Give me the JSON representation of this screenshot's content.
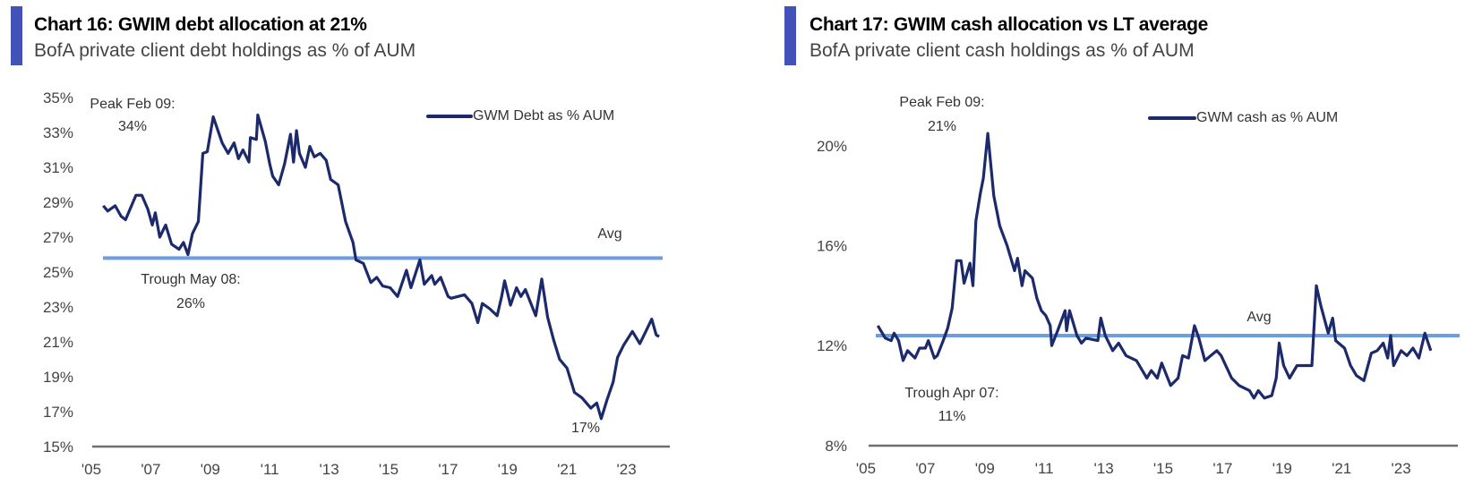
{
  "colors": {
    "series": "#1c2a6b",
    "avg": "#6b9ee0",
    "accent_bar": "#4352b8",
    "axis": "#6e6e6e"
  },
  "chart_data": [
    {
      "type": "line",
      "title": "Chart 16: GWIM debt allocation at 21%",
      "subtitle": "BofA private client debt holdings as % of AUM",
      "legend": {
        "label": "GWM Debt as % AUM",
        "position": "top-right"
      },
      "ylim": [
        15,
        35
      ],
      "yticks": [
        "15%",
        "17%",
        "19%",
        "21%",
        "23%",
        "25%",
        "27%",
        "29%",
        "31%",
        "33%",
        "35%"
      ],
      "ytick_values": [
        15,
        17,
        19,
        21,
        23,
        25,
        27,
        29,
        31,
        33,
        35
      ],
      "xticks": [
        "'05",
        "'07",
        "'09",
        "'11",
        "'13",
        "'15",
        "'17",
        "'19",
        "'21",
        "'23"
      ],
      "xtick_values": [
        2005,
        2007,
        2009,
        2011,
        2013,
        2015,
        2017,
        2019,
        2021,
        2023
      ],
      "avg": {
        "label": "Avg",
        "value": 25.8
      },
      "annotations": {
        "peak_label": "Peak Feb 09:",
        "peak_value": "34%",
        "trough_label": "Trough May 08:",
        "trough_value": "26%",
        "low_value": "17%"
      },
      "series": [
        {
          "name": "GWM Debt as % AUM",
          "x": [
            2005.4,
            2005.55,
            2005.8,
            2006.0,
            2006.15,
            2006.3,
            2006.5,
            2006.7,
            2006.9,
            2007.05,
            2007.15,
            2007.3,
            2007.5,
            2007.7,
            2007.95,
            2008.1,
            2008.25,
            2008.4,
            2008.6,
            2008.75,
            2008.9,
            2009.1,
            2009.4,
            2009.6,
            2009.8,
            2009.95,
            2010.1,
            2010.3,
            2010.35,
            2010.55,
            2010.6,
            2010.85,
            2011.0,
            2011.1,
            2011.3,
            2011.5,
            2011.7,
            2011.8,
            2011.9,
            2012.0,
            2012.2,
            2012.35,
            2012.5,
            2012.7,
            2012.9,
            2013.05,
            2013.3,
            2013.55,
            2013.8,
            2013.9,
            2014.15,
            2014.4,
            2014.6,
            2014.8,
            2015.05,
            2015.3,
            2015.6,
            2015.75,
            2016.05,
            2016.2,
            2016.45,
            2016.55,
            2016.75,
            2017.0,
            2017.1,
            2017.55,
            2017.8,
            2018.0,
            2018.15,
            2018.4,
            2018.65,
            2018.8,
            2018.9,
            2019.1,
            2019.3,
            2019.45,
            2019.6,
            2019.95,
            2020.15,
            2020.35,
            2020.55,
            2020.75,
            2021.0,
            2021.25,
            2021.5,
            2021.8,
            2022.0,
            2022.15,
            2022.35,
            2022.55,
            2022.7,
            2022.9,
            2023.2,
            2023.45,
            2023.65,
            2023.85,
            2024.0,
            2024.1
          ],
          "y": [
            28.8,
            28.5,
            28.8,
            28.2,
            28.0,
            28.6,
            29.4,
            29.4,
            28.6,
            27.7,
            28.4,
            27.0,
            27.7,
            26.6,
            26.3,
            26.7,
            26.0,
            27.2,
            27.9,
            31.8,
            31.9,
            33.9,
            32.4,
            31.8,
            32.4,
            31.5,
            32.0,
            31.3,
            32.7,
            32.6,
            34.0,
            32.5,
            31.2,
            30.5,
            30.0,
            31.2,
            32.9,
            31.3,
            33.1,
            31.8,
            31.0,
            32.2,
            31.6,
            31.8,
            31.4,
            30.3,
            30.0,
            27.9,
            26.7,
            25.7,
            25.5,
            24.4,
            24.7,
            24.2,
            24.1,
            23.6,
            25.1,
            24.1,
            25.7,
            24.3,
            24.8,
            24.3,
            24.7,
            23.6,
            23.5,
            23.7,
            23.2,
            22.1,
            23.2,
            22.9,
            22.5,
            23.6,
            24.5,
            23.1,
            24.1,
            23.6,
            24.0,
            22.5,
            24.6,
            22.4,
            21.1,
            20.0,
            19.5,
            18.1,
            17.8,
            17.2,
            17.5,
            16.6,
            17.7,
            18.7,
            20.1,
            20.8,
            21.6,
            20.9,
            21.6,
            22.3,
            21.4,
            21.3
          ]
        }
      ]
    },
    {
      "type": "line",
      "title": "Chart 17: GWIM cash allocation vs LT average",
      "subtitle": "BofA private client cash holdings as % of AUM",
      "legend": {
        "label": "GWM cash as % AUM",
        "position": "top-right"
      },
      "ylim": [
        8,
        21
      ],
      "yticks": [
        "8%",
        "12%",
        "16%",
        "20%"
      ],
      "ytick_values": [
        8,
        12,
        16,
        20
      ],
      "xticks": [
        "'05",
        "'07",
        "'09",
        "'11",
        "'13",
        "'15",
        "'17",
        "'19",
        "'21",
        "'23"
      ],
      "xtick_values": [
        2005,
        2007,
        2009,
        2011,
        2013,
        2015,
        2017,
        2019,
        2021,
        2023
      ],
      "avg": {
        "label": "Avg",
        "value": 12.4
      },
      "annotations": {
        "peak_label": "Peak Feb 09:",
        "peak_value": "21%",
        "trough_label": "Trough Apr 07:",
        "trough_value": "11%"
      },
      "series": [
        {
          "name": "GWM cash as % AUM",
          "x": [
            2005.4,
            2005.65,
            2005.85,
            2005.95,
            2006.1,
            2006.25,
            2006.4,
            2006.65,
            2006.8,
            2007.0,
            2007.1,
            2007.3,
            2007.4,
            2007.6,
            2007.75,
            2007.9,
            2008.05,
            2008.2,
            2008.3,
            2008.5,
            2008.6,
            2008.7,
            2008.85,
            2008.95,
            2009.1,
            2009.3,
            2009.5,
            2009.75,
            2010.0,
            2010.1,
            2010.25,
            2010.35,
            2010.6,
            2010.75,
            2010.9,
            2011.05,
            2011.2,
            2011.25,
            2011.45,
            2011.7,
            2011.75,
            2011.85,
            2012.1,
            2012.25,
            2012.4,
            2012.8,
            2012.9,
            2013.05,
            2013.3,
            2013.5,
            2013.75,
            2014.1,
            2014.45,
            2014.6,
            2014.8,
            2014.95,
            2015.25,
            2015.5,
            2015.65,
            2015.85,
            2016.05,
            2016.2,
            2016.4,
            2016.8,
            2016.95,
            2017.3,
            2017.55,
            2017.9,
            2018.05,
            2018.2,
            2018.4,
            2018.65,
            2018.8,
            2018.9,
            2019.05,
            2019.25,
            2019.5,
            2019.75,
            2020.0,
            2020.15,
            2020.3,
            2020.55,
            2020.7,
            2020.8,
            2021.1,
            2021.3,
            2021.5,
            2021.75,
            2022.0,
            2022.2,
            2022.4,
            2022.55,
            2022.65,
            2022.75,
            2023.0,
            2023.2,
            2023.4,
            2023.6,
            2023.8,
            2024.0
          ],
          "y": [
            12.8,
            12.3,
            12.2,
            12.5,
            12.2,
            11.4,
            11.8,
            11.5,
            11.9,
            11.9,
            12.2,
            11.5,
            11.6,
            12.2,
            12.7,
            13.5,
            15.4,
            15.4,
            14.5,
            15.3,
            14.4,
            17.0,
            18.1,
            18.7,
            20.5,
            18.0,
            16.8,
            16.0,
            15.0,
            15.5,
            14.4,
            15.0,
            14.7,
            13.9,
            13.4,
            13.2,
            12.8,
            12.0,
            12.6,
            13.4,
            12.6,
            13.4,
            12.4,
            12.1,
            12.3,
            12.2,
            13.1,
            12.4,
            11.8,
            12.1,
            11.6,
            11.4,
            10.7,
            11.0,
            10.7,
            11.3,
            10.4,
            10.7,
            11.6,
            11.5,
            12.8,
            12.3,
            11.4,
            11.8,
            11.6,
            10.7,
            10.4,
            10.2,
            9.9,
            10.2,
            9.9,
            10.0,
            10.7,
            12.1,
            11.2,
            10.7,
            11.2,
            11.2,
            11.2,
            14.4,
            13.6,
            12.5,
            13.1,
            12.2,
            11.9,
            11.2,
            10.8,
            10.6,
            11.7,
            11.8,
            12.1,
            11.5,
            12.4,
            11.2,
            11.8,
            11.6,
            11.9,
            11.5,
            12.5,
            11.8
          ]
        }
      ]
    }
  ]
}
